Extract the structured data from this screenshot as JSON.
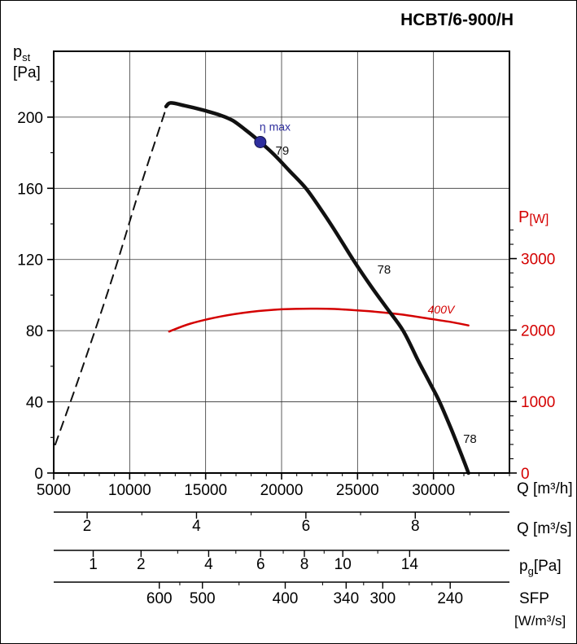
{
  "title": "HCBT/6-900/H",
  "colors": {
    "curve": "#111111",
    "power_curve": "#d40000",
    "marker": "#2f2f9e",
    "grid": "#333333",
    "axis": "#000000"
  },
  "labels": {
    "pst_main": "p",
    "pst_sub": "st",
    "pst_unit": "[Pa]",
    "pw_main": "P",
    "pw_unit": "[W]",
    "q_h": "Q [m³/h]",
    "q_s": "Q [m³/s]",
    "pg_main": "p",
    "pg_sub": "g",
    "pg_unit": "[Pa]",
    "sfp": "SFP",
    "sfp_unit": "[W/m³/s]"
  },
  "chart_data": {
    "type": "line",
    "title": "HCBT/6-900/H",
    "x_axis": {
      "label": "Q [m³/h]",
      "min": 5000,
      "max": 35000,
      "major_ticks": [
        5000,
        10000,
        15000,
        20000,
        25000,
        30000
      ],
      "minor_step": 1000,
      "grid": true
    },
    "y_left_axis": {
      "label": "p_st [Pa]",
      "min": 0,
      "max": 237,
      "major_ticks": [
        0,
        40,
        80,
        120,
        160,
        200
      ],
      "minor_step": 20,
      "grid": true
    },
    "y_right_axis": {
      "label": "P [W]",
      "min": 0,
      "max": 5900,
      "major_ticks": [
        0,
        1000,
        2000,
        3000
      ],
      "minor_step": 200,
      "minor_max": 3400,
      "color": "#d40000"
    },
    "series": [
      {
        "name": "static-pressure-unstable",
        "axis": "left",
        "style": "dashed",
        "color": "#111111",
        "width": 2,
        "points": [
          [
            5100,
            16
          ],
          [
            6800,
            57
          ],
          [
            8800,
            108
          ],
          [
            10600,
            158
          ],
          [
            11700,
            187
          ],
          [
            12400,
            205
          ]
        ]
      },
      {
        "name": "static-pressure",
        "axis": "left",
        "style": "solid",
        "color": "#111111",
        "width": 4.5,
        "points": [
          [
            12400,
            206
          ],
          [
            12700,
            208
          ],
          [
            13600,
            206.5
          ],
          [
            14800,
            204
          ],
          [
            16000,
            201
          ],
          [
            16800,
            198
          ],
          [
            17600,
            193
          ],
          [
            18600,
            186
          ],
          [
            19500,
            179
          ],
          [
            20500,
            170
          ],
          [
            21600,
            160
          ],
          [
            22600,
            148
          ],
          [
            23600,
            135
          ],
          [
            24700,
            120
          ],
          [
            25800,
            106
          ],
          [
            26900,
            93
          ],
          [
            28000,
            80
          ],
          [
            29000,
            63
          ],
          [
            29800,
            50
          ],
          [
            30400,
            40
          ],
          [
            31200,
            24
          ],
          [
            31900,
            9
          ],
          [
            32300,
            0
          ]
        ]
      },
      {
        "name": "power-input-400V",
        "axis": "right",
        "style": "solid",
        "color": "#d40000",
        "width": 2.5,
        "points": [
          [
            12600,
            1980
          ],
          [
            14000,
            2090
          ],
          [
            16000,
            2190
          ],
          [
            18000,
            2255
          ],
          [
            20000,
            2290
          ],
          [
            22000,
            2300
          ],
          [
            23500,
            2295
          ],
          [
            25000,
            2275
          ],
          [
            26500,
            2250
          ],
          [
            28000,
            2215
          ],
          [
            30000,
            2150
          ],
          [
            31200,
            2110
          ],
          [
            32300,
            2065
          ]
        ]
      }
    ],
    "marker": {
      "name": "eta-max",
      "axis": "left",
      "x": 18600,
      "y": 186,
      "radius": 7,
      "color": "#2f2f9e"
    },
    "annotations": [
      {
        "text": "η max",
        "axis": "left",
        "x": 18550,
        "y": 192.5,
        "color": "#2f2f9e",
        "size": 14,
        "anchor": "start"
      },
      {
        "text": "79",
        "axis": "left",
        "x": 19600,
        "y": 179,
        "color": "#111111",
        "size": 15,
        "anchor": "start"
      },
      {
        "text": "78",
        "axis": "left",
        "x": 26300,
        "y": 112,
        "color": "#111111",
        "size": 15,
        "anchor": "start"
      },
      {
        "text": "78",
        "axis": "left",
        "x": 31950,
        "y": 17,
        "color": "#111111",
        "size": 15,
        "anchor": "start"
      },
      {
        "text": "400V",
        "axis": "right",
        "x": 30500,
        "y": 2230,
        "color": "#d40000",
        "size": 14,
        "anchor": "middle",
        "italic": true
      }
    ],
    "secondary_axes": [
      {
        "name": "volume-flow-m3s",
        "label": "Q [m³/s]",
        "major_ticks": [
          {
            "label": "2",
            "q": 7200
          },
          {
            "label": "4",
            "q": 14400
          },
          {
            "label": "6",
            "q": 21600
          },
          {
            "label": "8",
            "q": 28800
          }
        ],
        "minor_ticks_q": [
          10800,
          18000,
          25200,
          32400
        ]
      },
      {
        "name": "dynamic-pressure-pg",
        "label": "pg [Pa]",
        "major_ticks": [
          {
            "label": "1",
            "q": 7600
          },
          {
            "label": "2",
            "q": 10750
          },
          {
            "label": "4",
            "q": 15200
          },
          {
            "label": "6",
            "q": 18620
          },
          {
            "label": "8",
            "q": 21500
          },
          {
            "label": "10",
            "q": 24030
          },
          {
            "label": "14",
            "q": 28430
          }
        ],
        "minor_ticks_q": [
          13160,
          16990,
          20110,
          22800,
          26330
        ]
      },
      {
        "name": "specific-fan-power-sfp",
        "label": "SFP [W/m³/s]",
        "major_ticks": [
          {
            "label": "600",
            "q": 11950
          },
          {
            "label": "500",
            "q": 14790
          },
          {
            "label": "400",
            "q": 20240
          },
          {
            "label": "340",
            "q": 24250
          },
          {
            "label": "300",
            "q": 26660
          },
          {
            "label": "240",
            "q": 31100
          }
        ],
        "minor_ticks_q": [
          13300,
          17200,
          22700,
          25400,
          28400,
          29900
        ]
      }
    ]
  }
}
